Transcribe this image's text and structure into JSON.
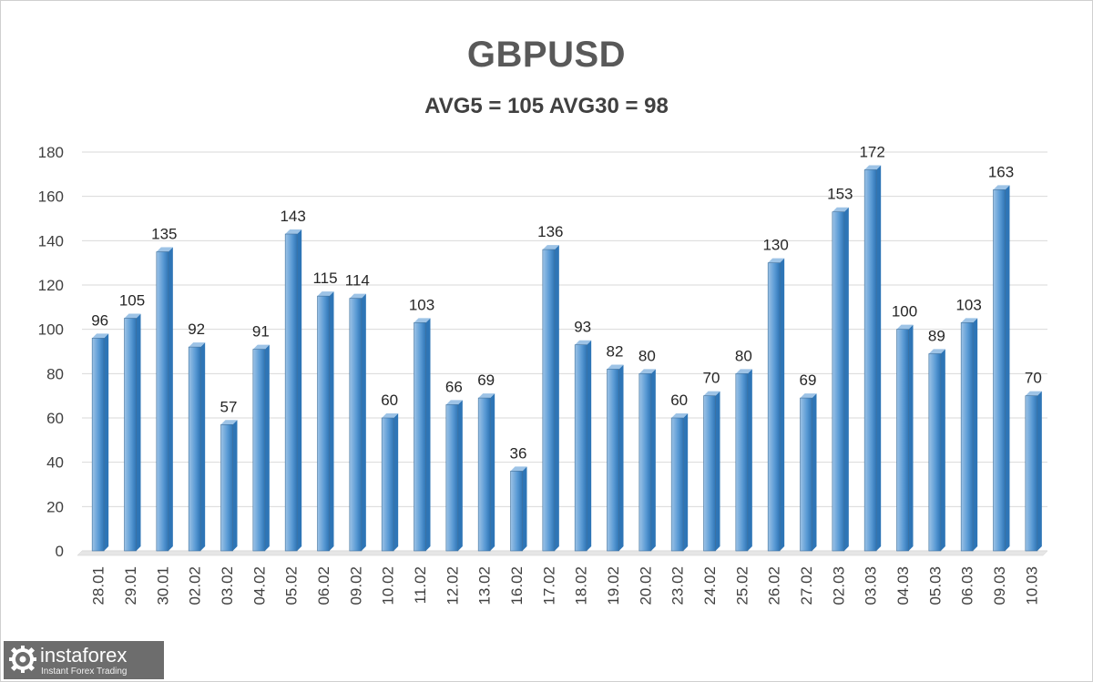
{
  "chart_data": {
    "type": "bar",
    "title": "GBPUSD",
    "subtitle": "AVG5 = 105 AVG30 = 98",
    "categories": [
      "28.01",
      "29.01",
      "30.01",
      "02.02",
      "03.02",
      "04.02",
      "05.02",
      "06.02",
      "09.02",
      "10.02",
      "11.02",
      "12.02",
      "13.02",
      "16.02",
      "17.02",
      "18.02",
      "19.02",
      "20.02",
      "23.02",
      "24.02",
      "25.02",
      "26.02",
      "27.02",
      "02.03",
      "03.03",
      "04.03",
      "05.03",
      "06.03",
      "09.03",
      "10.03"
    ],
    "values": [
      96,
      105,
      135,
      92,
      57,
      91,
      143,
      115,
      114,
      60,
      103,
      66,
      69,
      36,
      136,
      93,
      82,
      80,
      60,
      70,
      80,
      130,
      69,
      153,
      172,
      100,
      89,
      103,
      163,
      70
    ],
    "yticks": [
      0,
      20,
      40,
      60,
      80,
      100,
      120,
      140,
      160,
      180
    ],
    "ylim": [
      0,
      180
    ],
    "xlabel": "",
    "ylabel": "",
    "grid": true,
    "legend": "none",
    "bar_color": "#5b9bd5",
    "bar_color_light": "#9dc3e6",
    "bar_color_dark": "#2e75b6"
  },
  "watermark": {
    "name": "instaforex",
    "tagline": "Instant Forex Trading"
  }
}
